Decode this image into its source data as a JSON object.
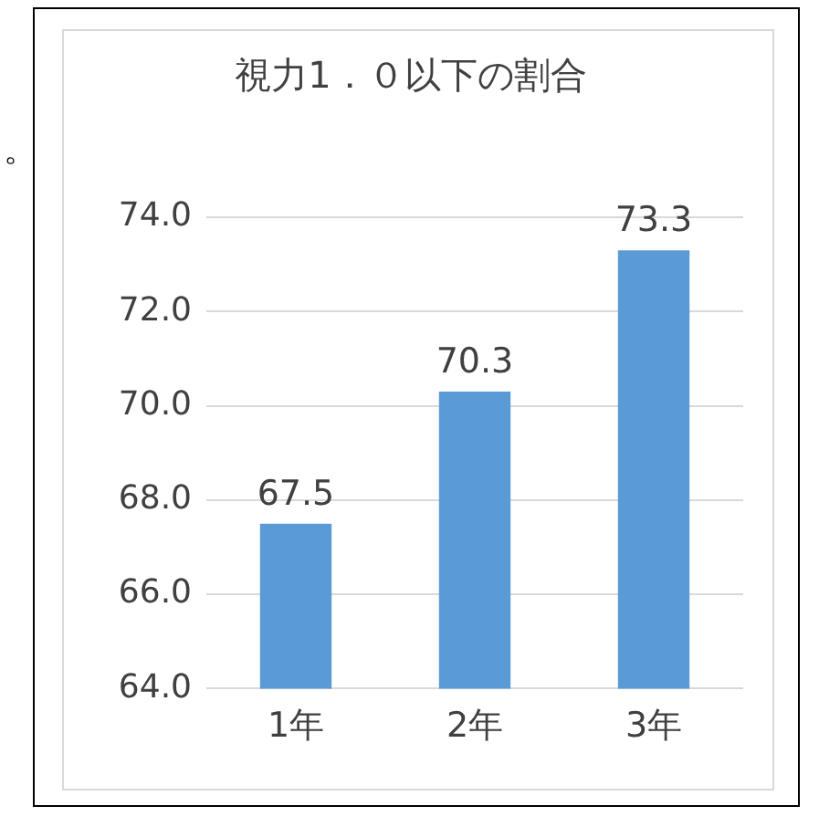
{
  "chart_data": {
    "type": "bar",
    "title": "視力1．０以下の割合",
    "categories": [
      "1年",
      "2年",
      "3年"
    ],
    "values": [
      67.5,
      70.3,
      73.3
    ],
    "color": "#5b9bd5",
    "ylim": [
      64,
      74
    ],
    "yticks": [
      {
        "value": 64,
        "label": "64.0"
      },
      {
        "value": 66,
        "label": "66.0"
      },
      {
        "value": 68,
        "label": "68.0"
      },
      {
        "value": 70,
        "label": "70.0"
      },
      {
        "value": 72,
        "label": "72.0"
      },
      {
        "value": 74,
        "label": "74.0"
      }
    ],
    "grid": "y",
    "legend": false,
    "data_labels": true,
    "annotations": [
      "。"
    ]
  }
}
